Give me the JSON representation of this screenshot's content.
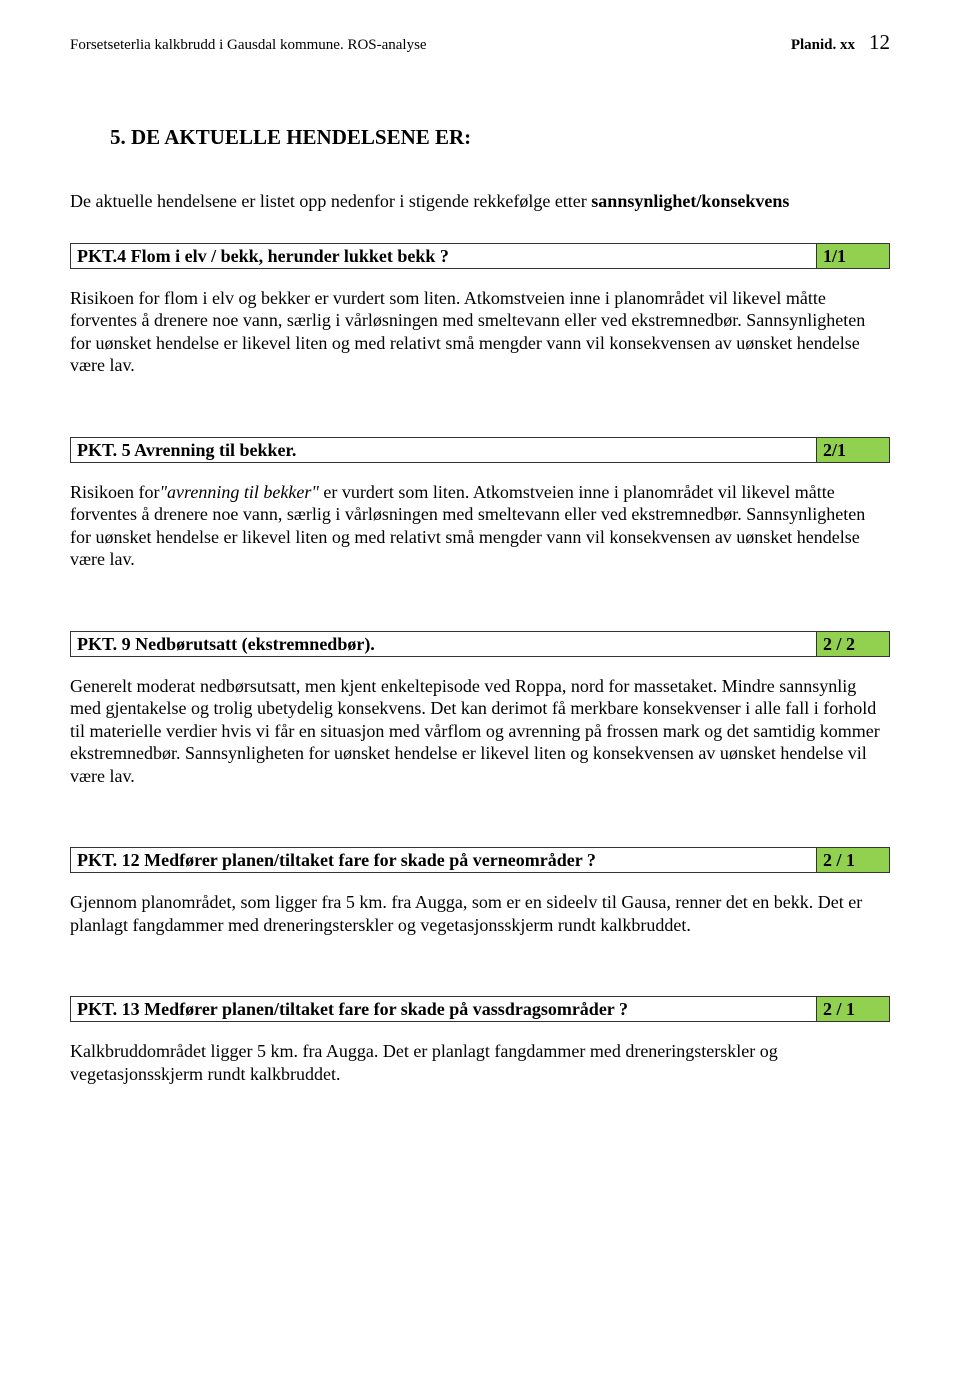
{
  "header": {
    "left": "Forsetseterlia kalkbrudd i Gausdal kommune. ROS-analyse",
    "right_title": "Planid. xx",
    "page_number": "12"
  },
  "section_heading": "5. DE AKTUELLE HENDELSENE ER:",
  "intro": {
    "plain1": "De aktuelle hendelsene er listet opp nedenfor i stigende rekkefølge etter ",
    "bold1": "sannsynlighet/konsekvens"
  },
  "green_color": "#92d050",
  "pkts": [
    {
      "title": "PKT.4  Flom i elv / bekk, herunder lukket bekk ?",
      "score": "1/1",
      "body": "Risikoen for flom i elv og bekker er vurdert som liten. Atkomstveien inne i planområdet vil likevel måtte forventes å drenere noe vann, særlig i vårløsningen med smeltevann eller ved ekstremnedbør. Sannsynligheten for uønsket hendelse er likevel liten og med relativt små mengder vann vil konsekvensen av uønsket hendelse være lav."
    },
    {
      "title": "PKT. 5  Avrenning til bekker.",
      "score": "2/1",
      "body_prefix": "Risikoen for",
      "body_italic": "\"avrenning til bekker\"",
      "body_suffix": " er vurdert som liten. Atkomstveien inne i planområdet vil likevel måtte forventes å drenere noe vann, særlig i vårløsningen med smeltevann eller ved ekstremnedbør. Sannsynligheten for uønsket hendelse er likevel liten og med relativt små mengder vann vil konsekvensen av uønsket hendelse være lav."
    },
    {
      "title": "PKT. 9  Nedbørutsatt (ekstremnedbør).",
      "score": "2 / 2",
      "body": "Generelt moderat nedbørsutsatt, men kjent enkeltepisode ved Roppa, nord for massetaket. Mindre sannsynlig med gjentakelse og trolig ubetydelig konsekvens. Det kan derimot få merkbare konsekvenser i alle fall i forhold til materielle verdier hvis vi får en situasjon med vårflom og avrenning på frossen mark og det samtidig kommer ekstremnedbør. Sannsynligheten for uønsket hendelse er likevel liten og konsekvensen av uønsket hendelse vil være lav."
    },
    {
      "title": "PKT. 12  Medfører planen/tiltaket fare for skade på verneområder ?",
      "score": "2 / 1",
      "body": "Gjennom planområdet, som ligger fra 5 km. fra Augga, som er en sideelv til Gausa, renner det en bekk. Det er planlagt fangdammer med dreneringsterskler og vegetasjonsskjerm rundt kalkbruddet."
    },
    {
      "title": "PKT. 13  Medfører planen/tiltaket fare for skade på vassdragsområder ?",
      "score": "2 / 1",
      "body": "Kalkbruddområdet ligger 5 km. fra Augga. Det er planlagt fangdammer med dreneringsterskler og vegetasjonsskjerm rundt kalkbruddet."
    }
  ]
}
